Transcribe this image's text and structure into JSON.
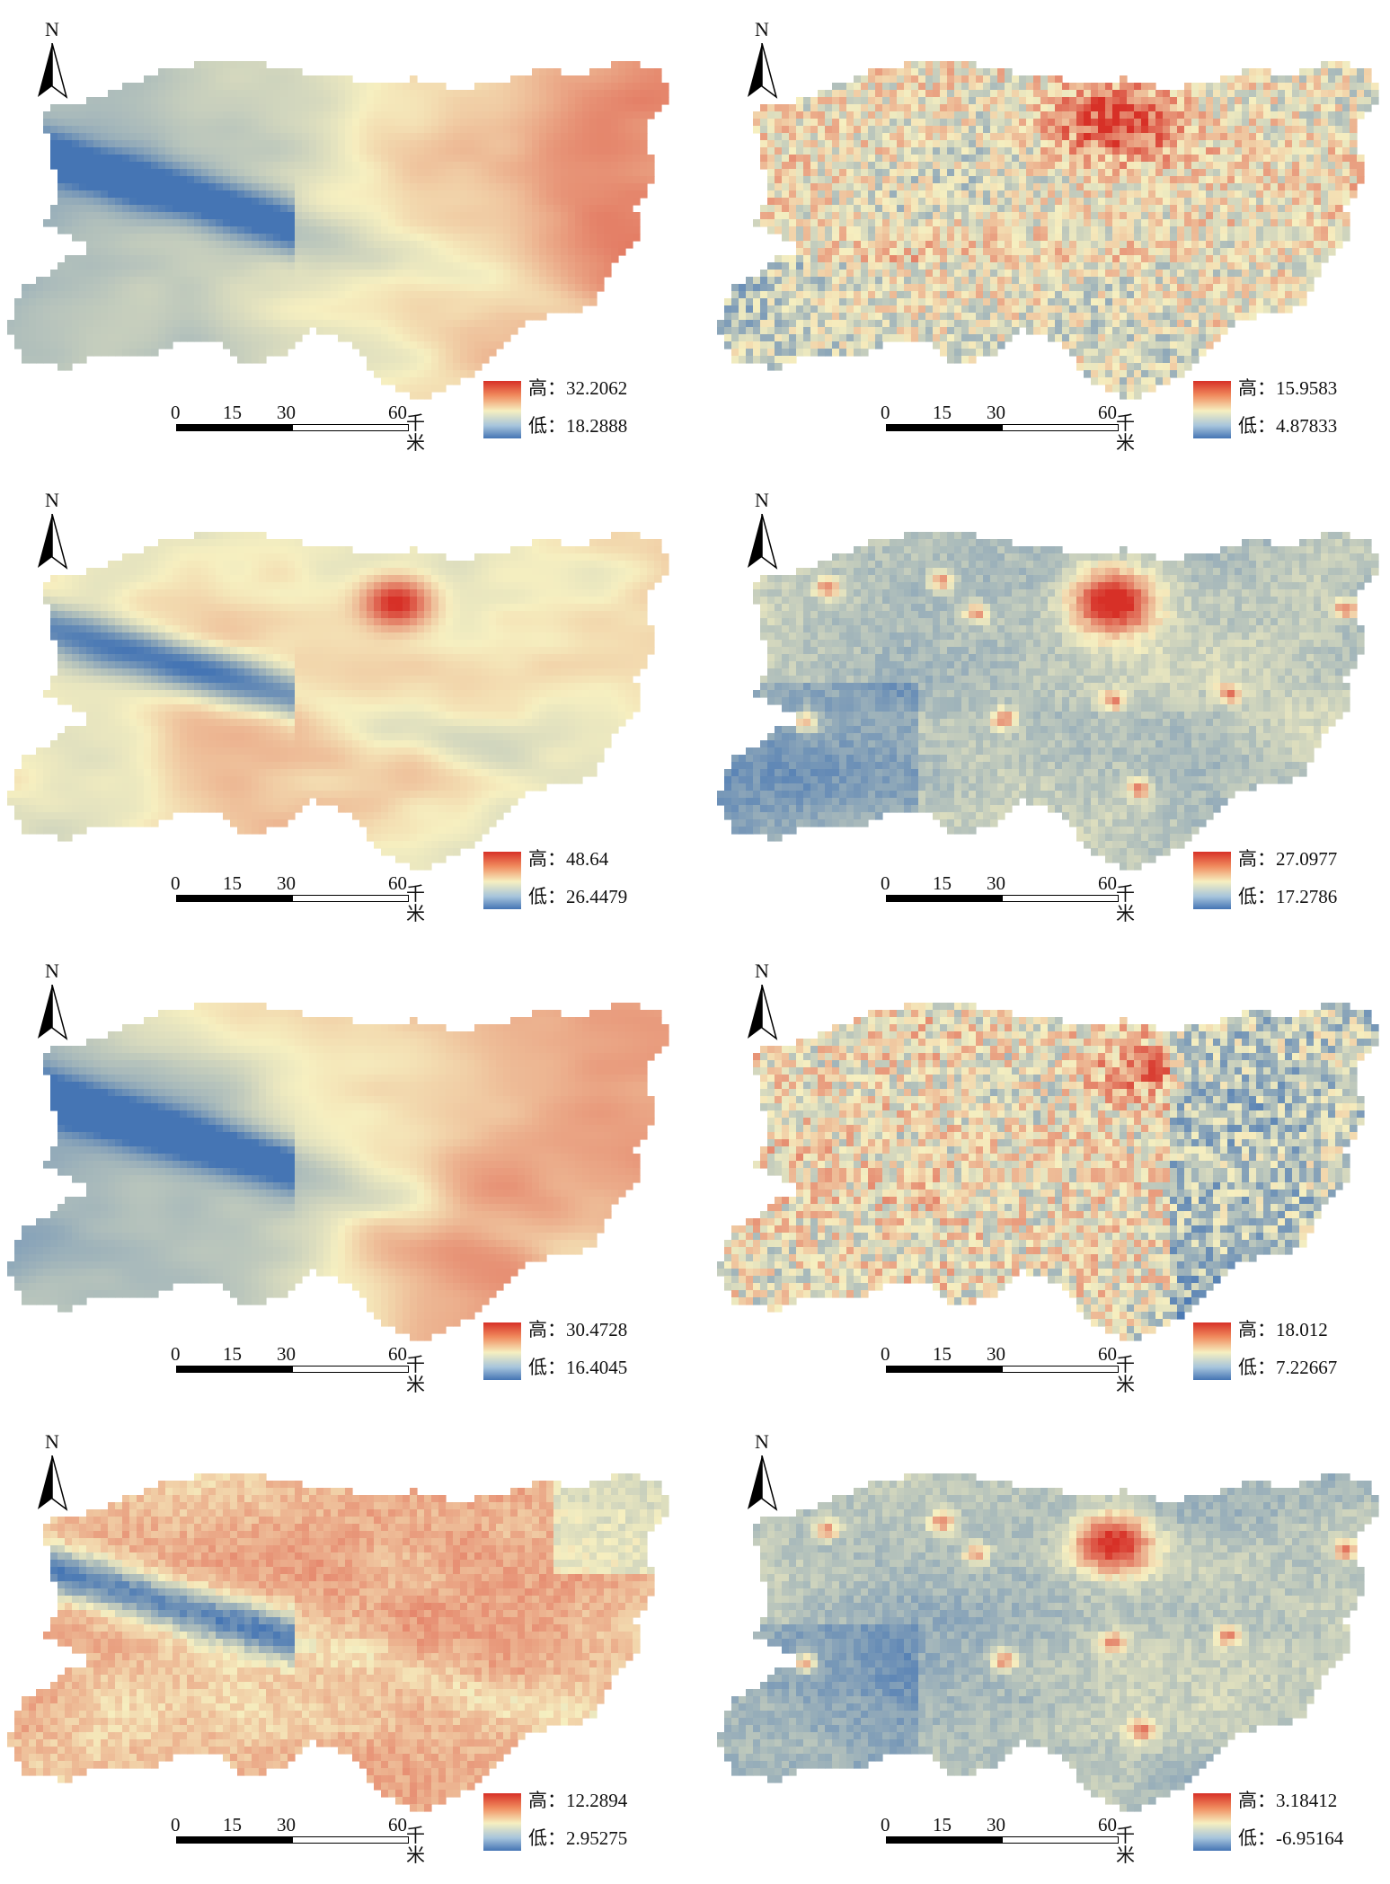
{
  "units": "千米",
  "north_label": "N",
  "scale_ticks": [
    "0",
    "15",
    "30",
    "60"
  ],
  "legend_labels": {
    "high": "高：",
    "low": "低："
  },
  "colors": {
    "high": "#d73027",
    "mid": "#f6efc0",
    "low": "#4575b4"
  },
  "panels": [
    {
      "id": "a",
      "high": "32.2062",
      "low": "18.2888",
      "pattern": "smooth-east-high"
    },
    {
      "id": "b",
      "high": "15.9583",
      "low": "4.87833",
      "pattern": "noisy-center-high"
    },
    {
      "id": "c",
      "high": "48.64",
      "low": "26.4479",
      "pattern": "smooth-mixed"
    },
    {
      "id": "d",
      "high": "27.0977",
      "low": "17.2786",
      "pattern": "hotspot-center"
    },
    {
      "id": "e",
      "high": "30.4728",
      "low": "16.4045",
      "pattern": "smooth-east-high"
    },
    {
      "id": "f",
      "high": "18.012",
      "low": "7.22667",
      "pattern": "noisy-mixed"
    },
    {
      "id": "g",
      "high": "12.2894",
      "low": "2.95275",
      "pattern": "mostly-high"
    },
    {
      "id": "h",
      "high": "3.18412",
      "low": "-6.95164",
      "pattern": "hotspot-center"
    }
  ]
}
